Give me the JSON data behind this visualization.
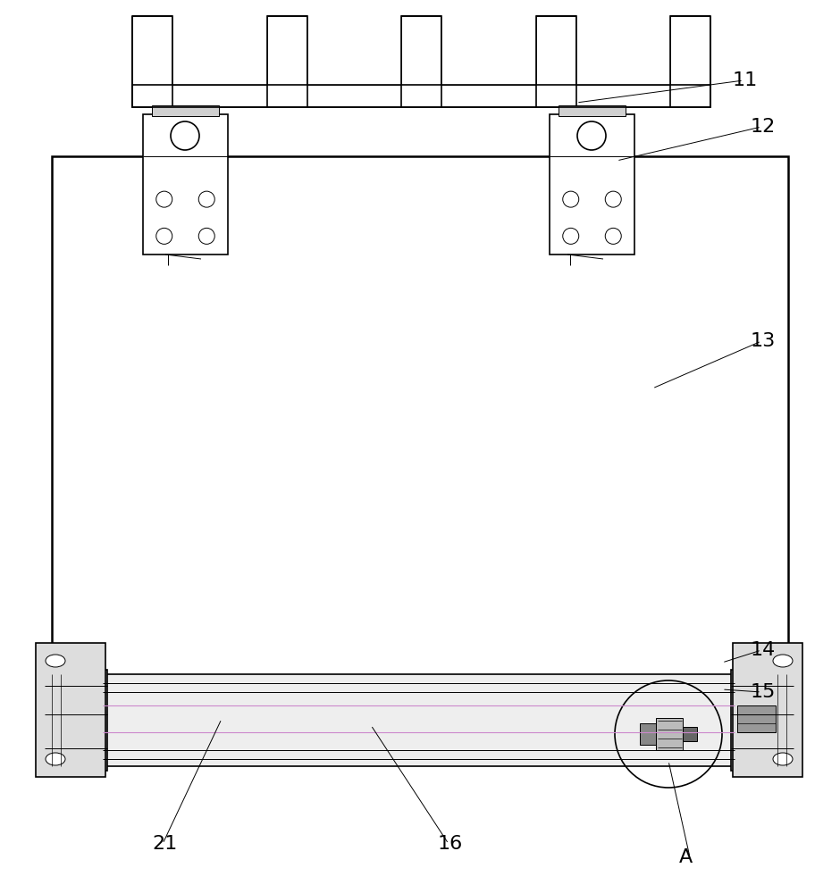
{
  "bg_color": "#ffffff",
  "lc": "#000000",
  "lw": 1.2,
  "lw_thin": 0.7,
  "lw_thick": 1.8,
  "fig_width": 9.4,
  "fig_height": 10.0,
  "label_defs": [
    [
      "11",
      820,
      910,
      645,
      885
    ],
    [
      "12",
      840,
      858,
      690,
      820
    ],
    [
      "13",
      840,
      618,
      730,
      565
    ],
    [
      "14",
      840,
      272,
      808,
      258
    ],
    [
      "15",
      840,
      225,
      808,
      228
    ],
    [
      "16",
      490,
      55,
      415,
      188
    ],
    [
      "21",
      170,
      55,
      248,
      195
    ],
    [
      "A",
      760,
      40,
      748,
      148
    ]
  ],
  "label_fontsize": 16
}
